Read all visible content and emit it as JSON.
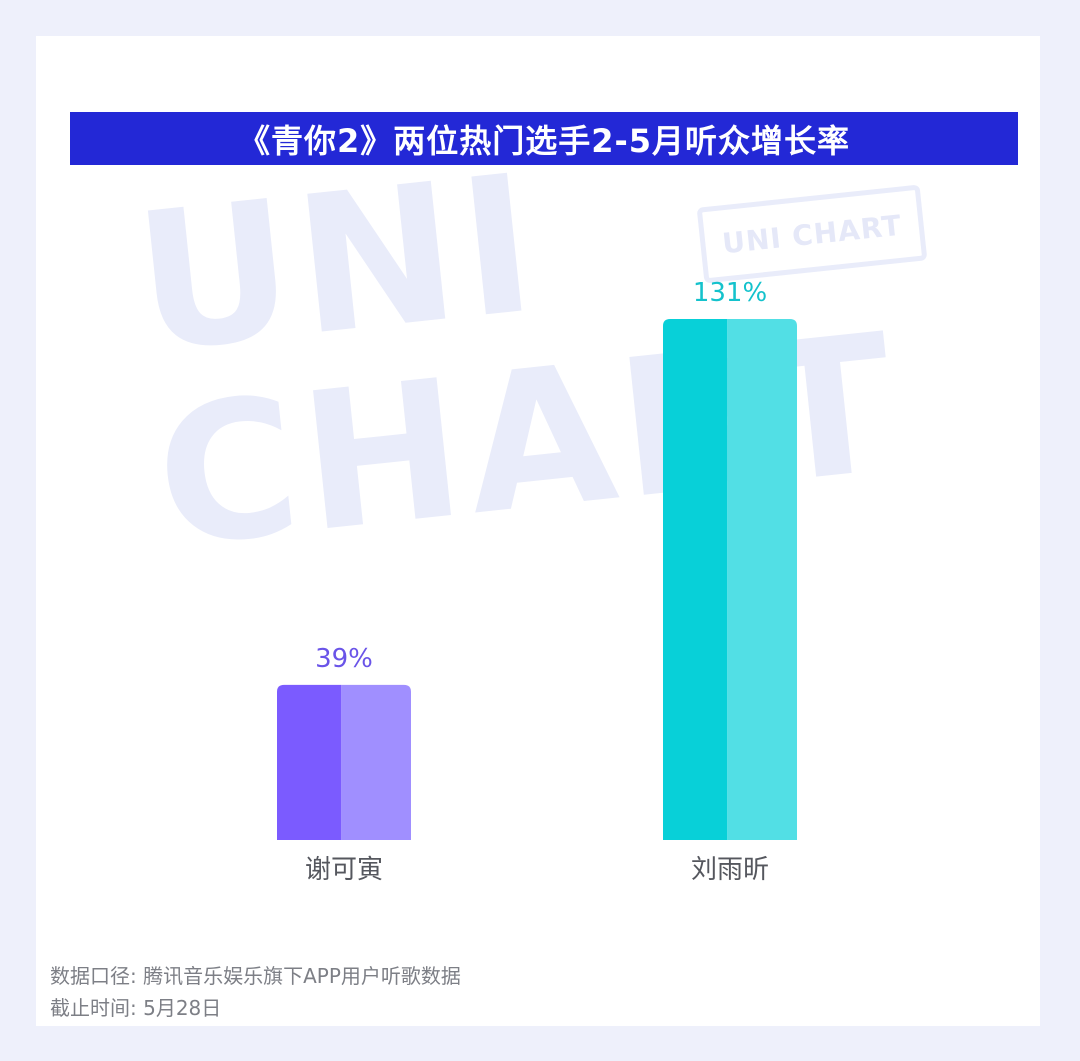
{
  "watermark": {
    "main": "UNI\nCHART",
    "stamp": "UNI CHART"
  },
  "footer": {
    "source": "数据口径: 腾讯音乐娱乐旗下APP用户听歌数据",
    "cutoff": "截止时间: 5月28日"
  },
  "chart_data": {
    "type": "bar",
    "title": "《青你2》两位热门选手2-5月听众增长率",
    "categories": [
      "谢可寅",
      "刘雨昕"
    ],
    "values": [
      39,
      131
    ],
    "value_labels": [
      "39%",
      "131%"
    ],
    "unit": "%",
    "ylim": [
      0,
      131
    ],
    "grid": false,
    "colors": {
      "bar_dark": [
        "#7b5bff",
        "#08d0d8"
      ],
      "bar_light": [
        "#a08fff",
        "#52dfe5"
      ],
      "label": [
        "#6a54e8",
        "#14c2cc"
      ],
      "category_label": "#55575e"
    }
  }
}
